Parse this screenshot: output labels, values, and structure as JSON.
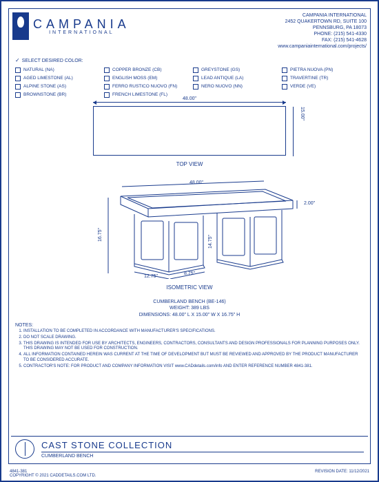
{
  "brand": "CAMPANIA",
  "sub_brand": "INTERNATIONAL",
  "company": {
    "name": "CAMPANIA INTERNATIONAL",
    "address1": "2452 QUAKERTOWN RD, SUITE 100",
    "address2": "PENNSBURG, PA 18073",
    "phone": "PHONE: (215) 541-4330",
    "fax": "FAX: (215) 541-4628",
    "url": "www.campaniainternational.com/projects/"
  },
  "color_section_title": "SELECT DESIRED COLOR:",
  "colors": [
    "NATURAL (NA)",
    "COPPER BRONZE (CB)",
    "GREYSTONE (GS)",
    "PIETRA NUOVA (PN)",
    "AGED LIMESTONE (AL)",
    "ENGLISH MOSS (EM)",
    "LEAD ANTIQUE (LA)",
    "TRAVERTINE (TR)",
    "ALPINE STONE (AS)",
    "FERRO RUSTICO NUOVO (FN)",
    "NERO NUOVO (NN)",
    "VERDE (VE)",
    "BROWNSTONE (BR)",
    "FRENCH LIMESTONE (FL)"
  ],
  "top_view": {
    "label": "TOP VIEW",
    "width_dim": "48.00\"",
    "depth_dim": "15.00\""
  },
  "iso_view": {
    "label": "ISOMETRIC VIEW",
    "top_width": "48.00\"",
    "top_thick": "2.00\"",
    "height": "16.75\"",
    "leg_height": "14.75\"",
    "leg_width": "12.75\"",
    "leg_depth": "8.75\"",
    "stroke": "#183a8c"
  },
  "product": {
    "name_line": "CUMBERLAND BENCH (BE-146)",
    "weight": "WEIGHT: 389 LBS",
    "dims": "DIMENSIONS: 48.00\" L X 15.00\" W X 16.75\" H"
  },
  "notes_title": "NOTES:",
  "notes": [
    "INSTALLATION TO BE COMPLETED IN ACCORDANCE WITH MANUFACTURER'S SPECIFICATIONS.",
    "DO NOT SCALE DRAWING.",
    "THIS DRAWING IS INTENDED FOR USE BY ARCHITECTS, ENGINEERS, CONTRACTORS, CONSULTANTS AND DESIGN PROFESSIONALS FOR PLANNING PURPOSES ONLY.  THIS DRAWING MAY NOT BE USED FOR CONSTRUCTION.",
    "ALL INFORMATION CONTAINED HEREIN WAS CURRENT AT THE TIME OF DEVELOPMENT BUT MUST BE REVIEWED AND APPROVED BY THE PRODUCT MANUFACTURER TO BE CONSIDERED ACCURATE.",
    "CONTRACTOR'S NOTE: FOR PRODUCT AND COMPANY INFORMATION VISIT www.CADdetails.com/info AND ENTER REFERENCE NUMBER  4841-381."
  ],
  "title_block": {
    "collection": "CAST STONE COLLECTION",
    "product": "CUMBERLAND BENCH"
  },
  "footer": {
    "ref": "4841-381",
    "copyright": "COPYRIGHT © 2021 CADDETAILS.COM LTD.",
    "revision": "REVISION DATE: 11/12/2021"
  }
}
